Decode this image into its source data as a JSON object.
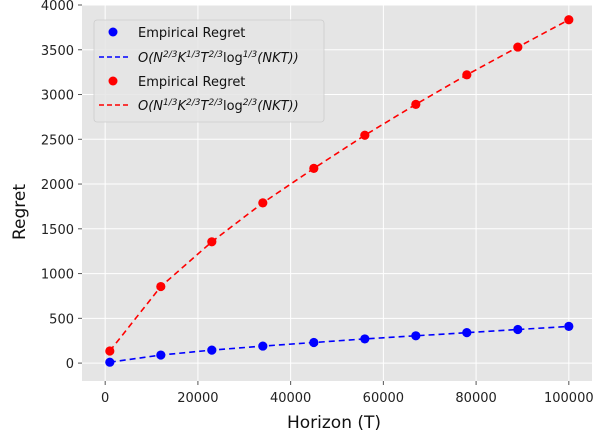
{
  "chart_data": {
    "type": "line",
    "title": "",
    "xlabel": "Horizon (T)",
    "ylabel": "Regret",
    "xlim": [
      -5000,
      105000
    ],
    "ylim": [
      -200,
      4000
    ],
    "xticks": [
      0,
      20000,
      40000,
      60000,
      80000,
      100000
    ],
    "xtick_labels": [
      "0",
      "20000",
      "40000",
      "60000",
      "80000",
      "100000"
    ],
    "yticks": [
      0,
      500,
      1000,
      1500,
      2000,
      2500,
      3000,
      3500,
      4000
    ],
    "ytick_labels": [
      "0",
      "500",
      "1000",
      "1500",
      "2000",
      "2500",
      "3000",
      "3500",
      "4000"
    ],
    "grid": true,
    "legend_position": "top-left",
    "x": [
      1000,
      12000,
      23000,
      34000,
      45000,
      56000,
      67000,
      78000,
      89000,
      100000
    ],
    "series": [
      {
        "name": "Empirical Regret",
        "kind": "scatter",
        "color": "#0000ff",
        "values": [
          10,
          90,
          145,
          190,
          230,
          270,
          305,
          340,
          375,
          410
        ]
      },
      {
        "name": "O(N^{2/3}K^{1/3}T^{2/3}log^{1/3}(NKT))",
        "kind": "dashed-line",
        "color": "#0000ff",
        "values": [
          10,
          90,
          145,
          190,
          230,
          270,
          305,
          340,
          375,
          410
        ]
      },
      {
        "name": "Empirical Regret",
        "kind": "scatter",
        "color": "#ff0000",
        "values": [
          135,
          855,
          1355,
          1790,
          2175,
          2545,
          2890,
          3220,
          3530,
          3835
        ]
      },
      {
        "name": "O(N^{1/3}K^{2/3}T^{2/3}log^{2/3}(NKT))",
        "kind": "dashed-line",
        "color": "#ff0000",
        "values": [
          135,
          855,
          1355,
          1790,
          2175,
          2545,
          2890,
          3220,
          3530,
          3835
        ]
      }
    ],
    "legend": {
      "entries": [
        {
          "label": "Empirical Regret"
        },
        {
          "pre": "O(N",
          "s1": "2/3",
          "m1": "K",
          "s2": "1/3",
          "m2": "T",
          "s3": "2/3",
          "m3": "log",
          "s4": "1/3",
          "tail": "(NKT))"
        },
        {
          "label": "Empirical Regret"
        },
        {
          "pre": "O(N",
          "s1": "1/3",
          "m1": "K",
          "s2": "2/3",
          "m2": "T",
          "s3": "2/3",
          "m3": "log",
          "s4": "2/3",
          "tail": "(NKT))"
        }
      ]
    },
    "colors": {
      "plot_background": "#e5e5e5",
      "grid": "#ffffff"
    }
  }
}
